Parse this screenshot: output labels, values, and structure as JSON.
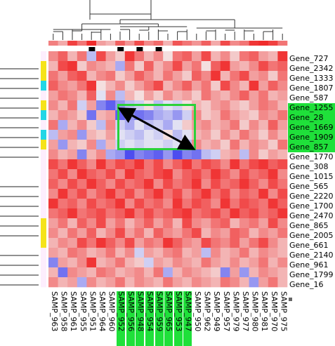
{
  "rows": [
    {
      "label": "Gene_727",
      "highlighted": false,
      "side": "none"
    },
    {
      "label": "Gene_2342",
      "highlighted": false,
      "side": "yellow"
    },
    {
      "label": "Gene_1333",
      "highlighted": false,
      "side": "yellow"
    },
    {
      "label": "Gene_1807",
      "highlighted": false,
      "side": "cyan"
    },
    {
      "label": "Gene_587",
      "highlighted": false,
      "side": "none"
    },
    {
      "label": "Gene_1255",
      "highlighted": true,
      "side": "yellow"
    },
    {
      "label": "Gene_28",
      "highlighted": true,
      "side": "cyan"
    },
    {
      "label": "Gene_1669",
      "highlighted": true,
      "side": "none"
    },
    {
      "label": "Gene_1909",
      "highlighted": true,
      "side": "cyan"
    },
    {
      "label": "Gene_857",
      "highlighted": true,
      "side": "yellow"
    },
    {
      "label": "Gene_1770",
      "highlighted": false,
      "side": "none"
    },
    {
      "label": "Gene_308",
      "highlighted": false,
      "side": "none"
    },
    {
      "label": "Gene_1015",
      "highlighted": false,
      "side": "none"
    },
    {
      "label": "Gene_565",
      "highlighted": false,
      "side": "none"
    },
    {
      "label": "Gene_2220",
      "highlighted": false,
      "side": "none"
    },
    {
      "label": "Gene_1700",
      "highlighted": false,
      "side": "none"
    },
    {
      "label": "Gene_2470",
      "highlighted": false,
      "side": "none"
    },
    {
      "label": "Gene_865",
      "highlighted": false,
      "side": "yellow"
    },
    {
      "label": "Gene_2005",
      "highlighted": false,
      "side": "yellow"
    },
    {
      "label": "Gene_661",
      "highlighted": false,
      "side": "yellow"
    },
    {
      "label": "Gene_2140",
      "highlighted": false,
      "side": "none"
    },
    {
      "label": "Gene_961",
      "highlighted": false,
      "side": "none"
    },
    {
      "label": "Gene_1799",
      "highlighted": false,
      "side": "none"
    },
    {
      "label": "Gene_16",
      "highlighted": false,
      "side": "none"
    }
  ],
  "columns": [
    {
      "label": "SAMP_963",
      "highlighted": false,
      "marker": false
    },
    {
      "label": "SAMP_958",
      "highlighted": false,
      "marker": false
    },
    {
      "label": "SAMP_961",
      "highlighted": false,
      "marker": false
    },
    {
      "label": "SAMP_955",
      "highlighted": false,
      "marker": false
    },
    {
      "label": "SAMP_951",
      "highlighted": false,
      "marker": true
    },
    {
      "label": "SAMP_964",
      "highlighted": false,
      "marker": false
    },
    {
      "label": "SAMP_960",
      "highlighted": false,
      "marker": false
    },
    {
      "label": "SAMP_952",
      "highlighted": true,
      "marker": true
    },
    {
      "label": "SAMP_956",
      "highlighted": true,
      "marker": false
    },
    {
      "label": "SAMP_948",
      "highlighted": true,
      "marker": true
    },
    {
      "label": "SAMP_954",
      "highlighted": true,
      "marker": false
    },
    {
      "label": "SAMP_959",
      "highlighted": true,
      "marker": true
    },
    {
      "label": "SAMP_965",
      "highlighted": true,
      "marker": false
    },
    {
      "label": "SAMP_953",
      "highlighted": true,
      "marker": false
    },
    {
      "label": "SAMP_947",
      "highlighted": true,
      "marker": false
    },
    {
      "label": "SAMP_950",
      "highlighted": false,
      "marker": false
    },
    {
      "label": "SAMP_962",
      "highlighted": false,
      "marker": false
    },
    {
      "label": "SAMP_949",
      "highlighted": false,
      "marker": false
    },
    {
      "label": "SAMP_957",
      "highlighted": false,
      "marker": false
    },
    {
      "label": "SAMP_979",
      "highlighted": false,
      "marker": false
    },
    {
      "label": "SAMP_977",
      "highlighted": false,
      "marker": false
    },
    {
      "label": "SAMP_980",
      "highlighted": false,
      "marker": false
    },
    {
      "label": "SAMP_981",
      "highlighted": false,
      "marker": false
    },
    {
      "label": "SAMP_970",
      "highlighted": false,
      "marker": false
    },
    {
      "label": "SAMP_975",
      "highlighted": false,
      "marker": false
    }
  ],
  "colors": {
    "high": "#f02020",
    "low": "#3a3aee",
    "mid": "#f4f4f4",
    "highlight": "#1fe03a",
    "selection_box": "#2bd13a",
    "side_yellow": "#f5e31a",
    "side_cyan": "#22d6e6",
    "side_none": "#fdeefd"
  },
  "column_annotation": [
    0.55,
    0.35,
    0.85,
    0.6,
    0.95,
    0.4,
    0.3,
    0.7,
    0.45,
    0.8,
    0.5,
    0.65,
    0.3,
    0.75,
    0.6,
    0.45,
    0.7,
    0.35,
    0.8,
    0.5,
    0.6,
    0.9,
    0.95,
    0.85,
    0.6
  ],
  "matrix": [
    [
      0.5,
      0.7,
      0.3,
      0.6,
      -0.3,
      0.8,
      0.4,
      0.2,
      0.9,
      0.6,
      0.3,
      0.5,
      0.1,
      0.6,
      0.7,
      0.4,
      0.8,
      0.3,
      0.5,
      0.2,
      0.6,
      0.7,
      0.4,
      0.3,
      0.9
    ],
    [
      0.3,
      0.8,
      0.9,
      0.2,
      0.5,
      0.4,
      0.3,
      -0.4,
      0.6,
      0.2,
      0.7,
      0.3,
      0.5,
      0.8,
      0.4,
      0.6,
      0.1,
      0.7,
      0.9,
      0.4,
      0.3,
      0.5,
      0.8,
      0.6,
      0.7
    ],
    [
      0.6,
      0.4,
      0.7,
      0.8,
      0.3,
      0.5,
      0.6,
      0.2,
      0.4,
      0.7,
      0.5,
      0.3,
      0.6,
      0.4,
      0.2,
      0.7,
      0.5,
      0.9,
      0.3,
      0.6,
      0.8,
      0.4,
      0.5,
      0.2,
      0.6
    ],
    [
      0.7,
      0.5,
      0.4,
      0.6,
      0.9,
      0.1,
      0.3,
      0.5,
      0.2,
      0.4,
      0.6,
      0.8,
      0.3,
      0.5,
      0.7,
      0.4,
      0.6,
      0.2,
      0.8,
      0.5,
      0.3,
      0.9,
      0.4,
      0.7,
      0.5
    ],
    [
      0.4,
      0.6,
      0.5,
      0.3,
      0.7,
      -0.1,
      0.5,
      -0.3,
      0.3,
      0.1,
      0.4,
      0.2,
      0.5,
      0.3,
      0.4,
      0.2,
      0.6,
      0.4,
      0.3,
      0.5,
      0.7,
      0.4,
      0.6,
      0.3,
      0.4
    ],
    [
      0.5,
      0.3,
      0.6,
      -0.2,
      0.4,
      -0.6,
      -0.8,
      -0.5,
      -0.3,
      -0.2,
      0.1,
      -0.3,
      -0.1,
      -0.2,
      0.1,
      0.3,
      0.2,
      0.4,
      0.5,
      0.3,
      0.2,
      0.4,
      0.6,
      0.5,
      0.3
    ],
    [
      0.3,
      0.5,
      0.4,
      0.2,
      -0.7,
      0.3,
      0.4,
      -0.8,
      -0.5,
      -0.7,
      -0.6,
      -0.4,
      -0.3,
      -0.5,
      -0.2,
      0.5,
      0.2,
      0.3,
      0.6,
      0.4,
      0.3,
      0.2,
      0.5,
      0.4,
      0.6
    ],
    [
      0.6,
      -0.4,
      0.3,
      0.5,
      0.2,
      -0.3,
      0.5,
      -0.2,
      -0.4,
      -0.1,
      -0.3,
      -0.2,
      -0.4,
      -0.1,
      0.2,
      0.4,
      0.5,
      0.3,
      0.4,
      0.6,
      0.2,
      0.5,
      0.3,
      0.7,
      0.4
    ],
    [
      -0.3,
      0.4,
      0.5,
      -0.5,
      0.3,
      0.2,
      0.4,
      -0.1,
      -0.2,
      -0.3,
      -0.1,
      -0.2,
      0.1,
      -0.3,
      -0.1,
      0.3,
      0.4,
      0.2,
      0.5,
      0.3,
      0.6,
      0.4,
      0.2,
      0.5,
      0.3
    ],
    [
      0.4,
      -0.5,
      0.3,
      0.2,
      0.5,
      -0.4,
      0.3,
      -0.2,
      -0.1,
      -0.2,
      -0.1,
      -0.1,
      -0.2,
      -0.1,
      -0.3,
      0.5,
      0.3,
      0.4,
      0.2,
      0.6,
      0.3,
      0.5,
      0.4,
      0.2,
      0.6
    ],
    [
      0.5,
      0.3,
      0.4,
      -0.6,
      0.3,
      0.5,
      -0.4,
      -0.5,
      -0.9,
      -0.6,
      -0.7,
      -0.8,
      -0.5,
      -0.9,
      -0.6,
      -0.7,
      -0.3,
      -0.2,
      0.3,
      0.4,
      -0.3,
      0.5,
      0.2,
      0.4,
      0.3
    ],
    [
      0.8,
      0.6,
      0.9,
      0.7,
      0.5,
      0.9,
      0.6,
      0.8,
      0.7,
      0.9,
      0.6,
      0.8,
      0.5,
      0.7,
      0.9,
      0.6,
      0.8,
      0.7,
      0.5,
      0.9,
      0.6,
      0.8,
      0.9,
      0.7,
      0.8
    ],
    [
      0.6,
      0.8,
      0.5,
      0.9,
      0.7,
      0.6,
      0.8,
      0.5,
      0.9,
      0.7,
      0.6,
      0.8,
      0.9,
      0.5,
      0.7,
      0.8,
      0.6,
      0.9,
      0.7,
      0.5,
      0.8,
      0.6,
      0.7,
      0.9,
      0.5
    ],
    [
      0.7,
      0.5,
      0.8,
      0.6,
      0.9,
      0.7,
      0.5,
      0.8,
      0.6,
      0.7,
      0.9,
      0.5,
      0.8,
      0.6,
      0.7,
      0.9,
      0.5,
      0.8,
      0.6,
      0.7,
      0.9,
      0.7,
      0.5,
      0.8,
      0.6
    ],
    [
      0.5,
      0.9,
      0.6,
      0.8,
      0.5,
      0.7,
      0.9,
      0.6,
      0.8,
      0.5,
      0.7,
      0.9,
      0.6,
      0.8,
      0.5,
      0.7,
      0.9,
      0.6,
      0.8,
      0.5,
      0.7,
      0.6,
      0.9,
      0.5,
      0.8
    ],
    [
      0.9,
      0.6,
      0.7,
      0.5,
      0.8,
      0.6,
      0.7,
      0.9,
      0.5,
      0.8,
      0.6,
      0.7,
      0.5,
      0.9,
      0.6,
      0.8,
      0.7,
      0.5,
      0.9,
      0.6,
      0.8,
      0.7,
      0.6,
      0.9,
      0.7
    ],
    [
      0.6,
      0.7,
      0.9,
      0.6,
      0.7,
      0.8,
      0.6,
      0.7,
      0.9,
      0.6,
      0.8,
      0.6,
      0.7,
      0.8,
      0.9,
      0.6,
      0.7,
      0.8,
      0.6,
      0.9,
      0.7,
      0.8,
      0.6,
      0.7,
      0.9
    ],
    [
      0.4,
      0.6,
      0.3,
      0.7,
      0.5,
      0.8,
      0.4,
      0.6,
      0.3,
      0.5,
      0.7,
      0.4,
      0.6,
      0.3,
      0.8,
      0.5,
      0.4,
      0.6,
      0.7,
      0.3,
      0.5,
      0.6,
      0.4,
      0.8,
      0.5
    ],
    [
      0.5,
      0.3,
      0.6,
      0.4,
      0.7,
      0.3,
      0.5,
      0.8,
      0.4,
      0.6,
      0.3,
      0.7,
      0.5,
      0.4,
      0.6,
      0.8,
      0.3,
      0.5,
      0.4,
      0.7,
      0.6,
      0.3,
      0.5,
      0.4,
      0.6
    ],
    [
      0.3,
      0.5,
      0.4,
      0.8,
      0.6,
      0.9,
      0.7,
      0.5,
      0.8,
      0.4,
      0.6,
      0.5,
      0.9,
      0.7,
      0.5,
      0.4,
      0.8,
      0.6,
      0.5,
      0.7,
      0.4,
      0.6,
      0.8,
      0.5,
      0.3
    ],
    [
      0.4,
      0.3,
      0.6,
      0.5,
      0.3,
      0.4,
      0.6,
      0.3,
      0.5,
      -0.2,
      0.4,
      0.3,
      0.5,
      0.6,
      0.3,
      0.4,
      -0.3,
      0.5,
      0.3,
      0.4,
      0.6,
      0.3,
      0.5,
      0.4,
      0.3
    ],
    [
      -0.6,
      0.4,
      0.3,
      0.5,
      0.9,
      0.3,
      0.4,
      0.6,
      0.3,
      0.2,
      -0.2,
      0.4,
      0.3,
      0.5,
      0.4,
      0.3,
      0.6,
      0.4,
      0.3,
      0.5,
      0.3,
      0.4,
      0.6,
      0.3,
      0.5
    ],
    [
      0.3,
      -0.7,
      0.5,
      0.4,
      0.3,
      0.6,
      0.5,
      0.3,
      0.4,
      0.5,
      0.3,
      0.6,
      -0.4,
      0.3,
      0.5,
      0.4,
      0.3,
      0.2,
      -0.6,
      0.4,
      -0.5,
      0.3,
      0.5,
      0.4,
      0.3
    ],
    [
      0.5,
      0.3,
      0.4,
      -0.4,
      0.5,
      0.3,
      0.4,
      0.6,
      0.3,
      0.5,
      0.4,
      0.3,
      0.6,
      0.4,
      0.3,
      0.5,
      0.4,
      0.3,
      0.6,
      0.5,
      0.3,
      -0.5,
      0.4,
      0.6,
      0.3
    ]
  ]
}
